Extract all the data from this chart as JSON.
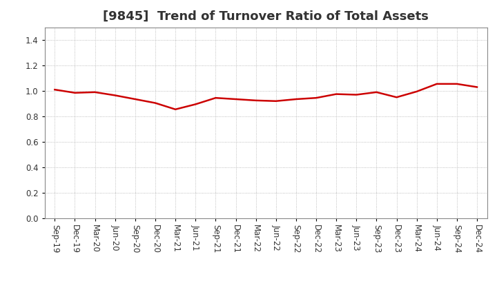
{
  "title": "[9845]  Trend of Turnover Ratio of Total Assets",
  "x_labels": [
    "Sep-19",
    "Dec-19",
    "Mar-20",
    "Jun-20",
    "Sep-20",
    "Dec-20",
    "Mar-21",
    "Jun-21",
    "Sep-21",
    "Dec-21",
    "Mar-22",
    "Jun-22",
    "Sep-22",
    "Dec-22",
    "Mar-23",
    "Jun-23",
    "Sep-23",
    "Dec-23",
    "Mar-24",
    "Jun-24",
    "Sep-24",
    "Dec-24"
  ],
  "y_values": [
    1.01,
    0.985,
    0.99,
    0.965,
    0.935,
    0.905,
    0.855,
    0.895,
    0.945,
    0.935,
    0.925,
    0.92,
    0.935,
    0.945,
    0.975,
    0.97,
    0.99,
    0.95,
    0.995,
    1.055,
    1.055,
    1.03
  ],
  "line_color": "#cc0000",
  "line_width": 1.8,
  "ylim": [
    0.0,
    1.5
  ],
  "yticks": [
    0.0,
    0.2,
    0.4,
    0.6,
    0.8,
    1.0,
    1.2,
    1.4
  ],
  "background_color": "#ffffff",
  "plot_bg_color": "#ffffff",
  "grid_color": "#aaaaaa",
  "title_fontsize": 13,
  "title_color": "#333333",
  "tick_fontsize": 8.5,
  "tick_color": "#333333"
}
